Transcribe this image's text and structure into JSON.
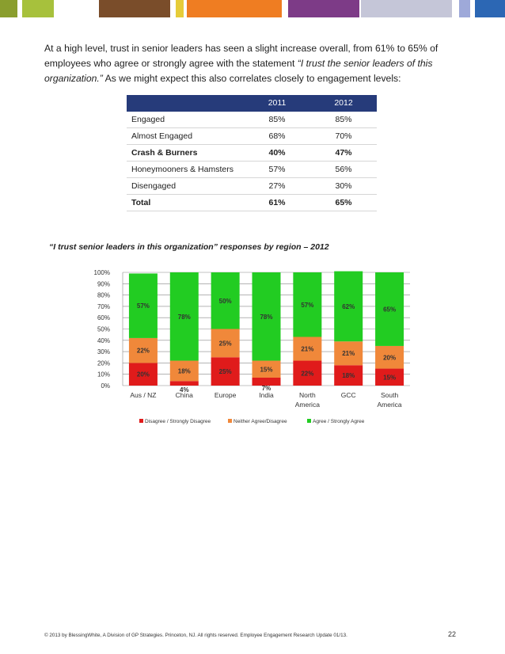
{
  "top_bar_colors": [
    "#8a9e2e",
    "#a7c13c",
    "#7a4d2a",
    "#e6cc39",
    "#ef7d22",
    "#7d3b87",
    "#c5c6d8",
    "#9ea9d9",
    "#2c67b4"
  ],
  "intro": {
    "text_before": "At a high level, trust in senior leaders has seen a slight increase overall, from 61% to 65% of employees who agree or strongly agree with the statement ",
    "quote": "“I trust the senior leaders of this organization.”",
    "text_after": " As we might expect this also correlates closely to engagement levels:"
  },
  "table": {
    "col1": "2011",
    "col2": "2012",
    "rows": [
      {
        "label": "Engaged",
        "v2011": "85%",
        "v2012": "85%",
        "bold": false
      },
      {
        "label": "Almost Engaged",
        "v2011": "68%",
        "v2012": "70%",
        "bold": false
      },
      {
        "label": "Crash & Burners",
        "v2011": "40%",
        "v2012": "47%",
        "bold": true
      },
      {
        "label": "Honeymooners & Hamsters",
        "v2011": "57%",
        "v2012": "56%",
        "bold": false
      },
      {
        "label": "Disengaged",
        "v2011": "27%",
        "v2012": "30%",
        "bold": false
      },
      {
        "label": "Total",
        "v2011": "61%",
        "v2012": "65%",
        "bold": true
      }
    ]
  },
  "chart_title": "“I trust senior leaders in this organization” responses by region – 2012",
  "chart_data": {
    "type": "bar",
    "stacked": true,
    "categories": [
      "Aus / NZ",
      "China",
      "Europe",
      "India",
      "North America",
      "GCC",
      "South America"
    ],
    "category_lines": [
      [
        "Aus / NZ"
      ],
      [
        "China"
      ],
      [
        "Europe"
      ],
      [
        "India"
      ],
      [
        "North",
        "America"
      ],
      [
        "GCC"
      ],
      [
        "South",
        "America"
      ]
    ],
    "series": [
      {
        "name": "Disagree / Strongly Disagree",
        "values": [
          20,
          4,
          25,
          7,
          22,
          18,
          15
        ],
        "color": "#e01b1b"
      },
      {
        "name": "Neither Agree/Disagree",
        "values": [
          22,
          18,
          25,
          15,
          21,
          21,
          20
        ],
        "color": "#f0883a"
      },
      {
        "name": "Agree / Strongly Agree",
        "values": [
          57,
          78,
          50,
          78,
          57,
          62,
          65
        ],
        "color": "#22cc22"
      }
    ],
    "ylim": [
      0,
      100
    ],
    "yticks": [
      "0%",
      "10%",
      "20%",
      "30%",
      "40%",
      "50%",
      "60%",
      "70%",
      "80%",
      "90%",
      "100%"
    ],
    "grid": true,
    "legend": "bottom"
  },
  "footer": {
    "left": "© 2013 by BlessingWhite, A Division of GP Strategies. Princeton, NJ. All rights reserved. Employee Engagement Research Update 01/13.",
    "page": "22"
  }
}
